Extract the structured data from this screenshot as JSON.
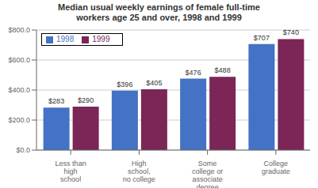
{
  "chart_data": {
    "type": "bar",
    "title": "Median usual weekly earnings of female full-time\nworkers age 25 and over, 1998 and 1999",
    "categories": [
      "Less than\nhigh\nschool",
      "High\nschool,\nno college",
      "Some\ncollege or\nassociate\ndegree",
      "College\ngraduate"
    ],
    "series": [
      {
        "name": "1998",
        "color": "#4472C4",
        "values": [
          283,
          396,
          476,
          707
        ],
        "value_labels": [
          "$283",
          "$396",
          "$476",
          "$707"
        ]
      },
      {
        "name": "1999",
        "color": "#7B2657",
        "values": [
          290,
          405,
          488,
          740
        ],
        "value_labels": [
          "$290",
          "$405",
          "$488",
          "$740"
        ]
      }
    ],
    "ylim": [
      0,
      800
    ],
    "yticks": [
      {
        "value": 0,
        "label": "$0.0"
      },
      {
        "value": 200,
        "label": "$200.0"
      },
      {
        "value": 400,
        "label": "$400.0"
      },
      {
        "value": 600,
        "label": "$600.0"
      },
      {
        "value": 800,
        "label": "$800.0"
      }
    ],
    "grid": true,
    "legend": "upper left",
    "data_labels": true
  }
}
